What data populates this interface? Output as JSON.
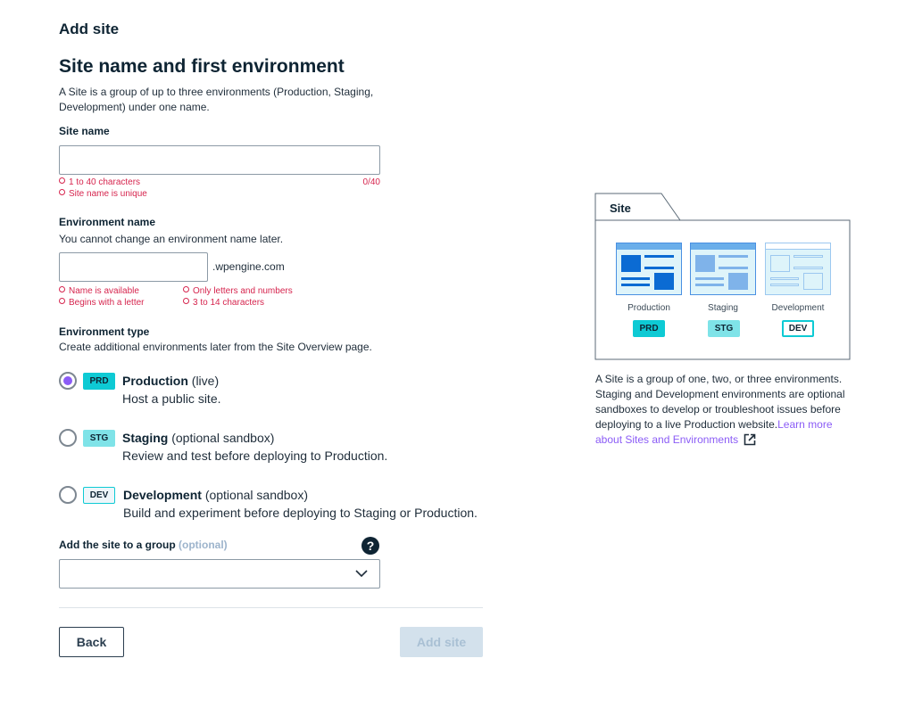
{
  "header": {
    "title": "Add site"
  },
  "section": {
    "title": "Site name and first environment",
    "description_line1": "A Site is a group of up to three environments (Production, Staging,",
    "description_line2": "Development) under one name."
  },
  "site_name": {
    "label": "Site name",
    "value": "",
    "counter": "0/40",
    "hints": [
      "1 to 40 characters",
      "Site name is unique"
    ]
  },
  "environment_name": {
    "label": "Environment name",
    "description": "You cannot change an environment name later.",
    "value": "",
    "suffix": ".wpengine.com",
    "hints": [
      "Name is available",
      "Begins with a letter",
      "Only letters and numbers",
      "3 to 14 characters"
    ]
  },
  "environment_type": {
    "label": "Environment type",
    "description": "Create additional environments later from the Site Overview page.",
    "options": [
      {
        "badge": "PRD",
        "name": "Production",
        "qualifier": "(live)",
        "description": "Host a public site.",
        "selected": true
      },
      {
        "badge": "STG",
        "name": "Staging",
        "qualifier": "(optional sandbox)",
        "description": "Review and test before deploying to Production.",
        "selected": false
      },
      {
        "badge": "DEV",
        "name": "Development",
        "qualifier": "(optional sandbox)",
        "description": "Build and experiment before deploying to Staging or Production.",
        "selected": false
      }
    ]
  },
  "group": {
    "label": "Add the site to a group",
    "optional": "(optional)",
    "value": "",
    "help_icon": "question-circle-icon"
  },
  "buttons": {
    "back": "Back",
    "add_site": "Add site"
  },
  "sidebar": {
    "folder_label": "Site",
    "environments": [
      {
        "label": "Production",
        "badge": "PRD"
      },
      {
        "label": "Staging",
        "badge": "STG"
      },
      {
        "label": "Development",
        "badge": "DEV"
      }
    ],
    "text_lines": [
      "A Site is a group of one, two, or three environments.",
      "Staging and Development environments are optional",
      "sandboxes to develop or troubleshoot issues before",
      "deploying to a live Production website."
    ],
    "link_line1": "Learn more",
    "link_line2": "about Sites and Environments",
    "link_icon": "external-link-icon"
  },
  "colors": {
    "accent": "#8b5cf6",
    "error": "#d6254e",
    "prd": "#0ecad4",
    "stg": "#7fe3e8",
    "disabled_button": "#d3e1ec"
  }
}
